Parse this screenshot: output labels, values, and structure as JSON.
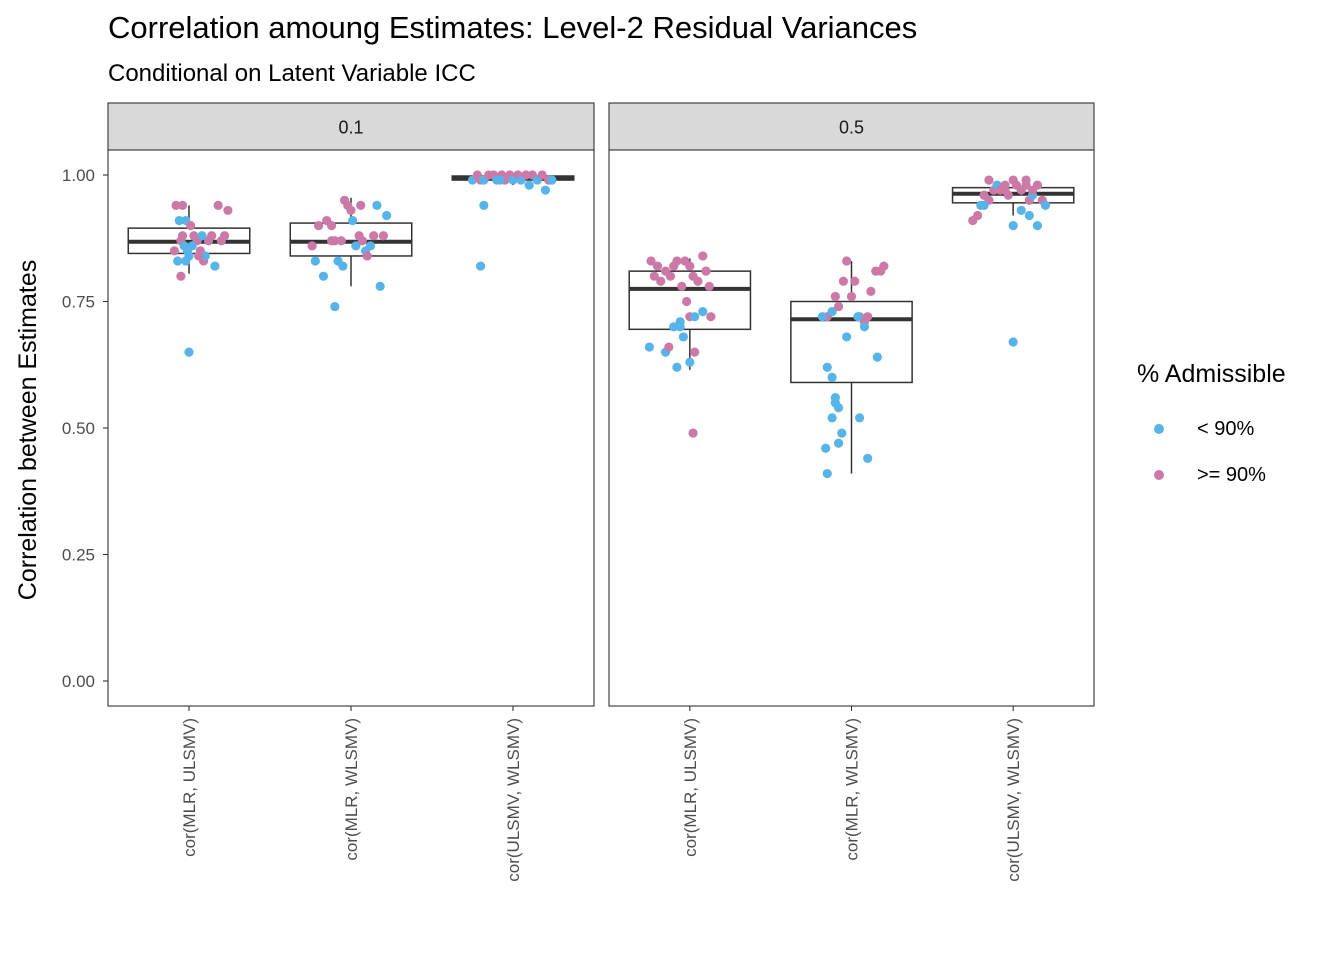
{
  "title": "Correlation amoung Estimates: Level-2 Residual Variances",
  "subtitle": "Conditional on Latent Variable ICC",
  "colors": {
    "lt90": "#56B4E9",
    "ge90": "#CC79A7",
    "strip_bg": "#D9D9D9"
  },
  "legend": {
    "title": "% Admissible",
    "items": [
      {
        "label": "< 90%",
        "color_key": "lt90"
      },
      {
        "label": ">= 90%",
        "color_key": "ge90"
      }
    ]
  },
  "chart_data": {
    "type": "boxplot",
    "ylabel": "Correlation between Estimates",
    "ylim": [
      -0.05,
      1.1
    ],
    "yticks": [
      0.0,
      0.25,
      0.5,
      0.75,
      1.0
    ],
    "ytick_labels": [
      "0.00",
      "0.25",
      "0.50",
      "0.75",
      "1.00"
    ],
    "categories": [
      "cor(MLR, ULSMV)",
      "cor(MLR, WLSMV)",
      "cor(ULSMV, WLSMV)"
    ],
    "facets": [
      {
        "label": "0.1",
        "boxes": [
          {
            "q1": 0.845,
            "median": 0.868,
            "q3": 0.895,
            "whisker_low": 0.805,
            "whisker_high": 0.94
          },
          {
            "q1": 0.84,
            "median": 0.868,
            "q3": 0.905,
            "whisker_low": 0.78,
            "whisker_high": 0.955
          },
          {
            "q1": 0.99,
            "median": 0.995,
            "q3": 0.998,
            "whisker_low": 0.98,
            "whisker_high": 1.0
          }
        ],
        "points": [
          [
            [
              -0.08,
              0.94,
              "ge90"
            ],
            [
              -0.06,
              0.91,
              "lt90"
            ],
            [
              -0.04,
              0.94,
              "ge90"
            ],
            [
              -0.02,
              0.91,
              "lt90"
            ],
            [
              -0.09,
              0.85,
              "ge90"
            ],
            [
              -0.07,
              0.83,
              "lt90"
            ],
            [
              -0.05,
              0.87,
              "ge90"
            ],
            [
              -0.03,
              0.86,
              "lt90"
            ],
            [
              -0.01,
              0.85,
              "lt90"
            ],
            [
              0.0,
              0.84,
              "lt90"
            ],
            [
              0.01,
              0.9,
              "ge90"
            ],
            [
              0.03,
              0.88,
              "ge90"
            ],
            [
              0.05,
              0.87,
              "ge90"
            ],
            [
              0.07,
              0.85,
              "ge90"
            ],
            [
              0.09,
              0.83,
              "ge90"
            ],
            [
              0.1,
              0.84,
              "lt90"
            ],
            [
              0.12,
              0.87,
              "ge90"
            ],
            [
              0.14,
              0.88,
              "ge90"
            ],
            [
              0.16,
              0.82,
              "lt90"
            ],
            [
              0.18,
              0.94,
              "ge90"
            ],
            [
              0.2,
              0.87,
              "ge90"
            ],
            [
              0.22,
              0.88,
              "ge90"
            ],
            [
              0.24,
              0.93,
              "ge90"
            ],
            [
              -0.02,
              0.83,
              "lt90"
            ],
            [
              0.02,
              0.86,
              "lt90"
            ],
            [
              0.06,
              0.84,
              "ge90"
            ],
            [
              -0.05,
              0.8,
              "ge90"
            ],
            [
              0.0,
              0.65,
              "lt90"
            ],
            [
              -0.04,
              0.88,
              "ge90"
            ],
            [
              0.08,
              0.88,
              "lt90"
            ]
          ],
          [
            [
              -0.24,
              0.86,
              "ge90"
            ],
            [
              -0.22,
              0.83,
              "lt90"
            ],
            [
              -0.2,
              0.9,
              "ge90"
            ],
            [
              -0.17,
              0.8,
              "lt90"
            ],
            [
              -0.15,
              0.91,
              "ge90"
            ],
            [
              -0.12,
              0.9,
              "ge90"
            ],
            [
              -0.1,
              0.87,
              "ge90"
            ],
            [
              -0.08,
              0.83,
              "lt90"
            ],
            [
              -0.05,
              0.82,
              "lt90"
            ],
            [
              -0.04,
              0.95,
              "ge90"
            ],
            [
              -0.02,
              0.94,
              "ge90"
            ],
            [
              0.0,
              0.93,
              "ge90"
            ],
            [
              0.01,
              0.91,
              "lt90"
            ],
            [
              0.03,
              0.86,
              "lt90"
            ],
            [
              0.05,
              0.88,
              "ge90"
            ],
            [
              0.07,
              0.87,
              "ge90"
            ],
            [
              0.09,
              0.85,
              "lt90"
            ],
            [
              0.1,
              0.84,
              "ge90"
            ],
            [
              0.12,
              0.86,
              "lt90"
            ],
            [
              0.14,
              0.88,
              "ge90"
            ],
            [
              0.16,
              0.94,
              "lt90"
            ],
            [
              0.18,
              0.78,
              "lt90"
            ],
            [
              0.2,
              0.88,
              "ge90"
            ],
            [
              0.22,
              0.92,
              "lt90"
            ],
            [
              -0.06,
              0.87,
              "ge90"
            ],
            [
              -0.1,
              0.74,
              "lt90"
            ],
            [
              0.06,
              0.94,
              "ge90"
            ],
            [
              -0.12,
              0.87,
              "ge90"
            ]
          ],
          [
            [
              -0.25,
              0.99,
              "lt90"
            ],
            [
              -0.22,
              1.0,
              "ge90"
            ],
            [
              -0.2,
              0.99,
              "ge90"
            ],
            [
              -0.18,
              0.99,
              "lt90"
            ],
            [
              -0.15,
              1.0,
              "ge90"
            ],
            [
              -0.12,
              1.0,
              "ge90"
            ],
            [
              -0.1,
              0.99,
              "lt90"
            ],
            [
              -0.07,
              1.0,
              "ge90"
            ],
            [
              -0.05,
              0.99,
              "ge90"
            ],
            [
              -0.02,
              1.0,
              "ge90"
            ],
            [
              0.0,
              0.99,
              "lt90"
            ],
            [
              0.03,
              1.0,
              "ge90"
            ],
            [
              0.05,
              0.99,
              "lt90"
            ],
            [
              0.08,
              1.0,
              "ge90"
            ],
            [
              0.1,
              0.98,
              "lt90"
            ],
            [
              0.12,
              1.0,
              "ge90"
            ],
            [
              0.15,
              0.99,
              "lt90"
            ],
            [
              0.18,
              1.0,
              "ge90"
            ],
            [
              0.2,
              0.97,
              "lt90"
            ],
            [
              0.22,
              0.99,
              "ge90"
            ],
            [
              -0.18,
              0.94,
              "lt90"
            ],
            [
              -0.2,
              0.82,
              "lt90"
            ],
            [
              0.24,
              0.99,
              "lt90"
            ],
            [
              -0.08,
              0.99,
              "lt90"
            ]
          ]
        ]
      },
      {
        "label": "0.5",
        "boxes": [
          {
            "q1": 0.695,
            "median": 0.775,
            "q3": 0.81,
            "whisker_low": 0.615,
            "whisker_high": 0.835
          },
          {
            "q1": 0.59,
            "median": 0.715,
            "q3": 0.75,
            "whisker_low": 0.41,
            "whisker_high": 0.83
          },
          {
            "q1": 0.945,
            "median": 0.963,
            "q3": 0.975,
            "whisker_low": 0.92,
            "whisker_high": 0.99
          }
        ],
        "points": [
          [
            [
              -0.24,
              0.83,
              "ge90"
            ],
            [
              -0.22,
              0.8,
              "ge90"
            ],
            [
              -0.2,
              0.82,
              "ge90"
            ],
            [
              -0.18,
              0.79,
              "ge90"
            ],
            [
              -0.15,
              0.81,
              "ge90"
            ],
            [
              -0.12,
              0.8,
              "ge90"
            ],
            [
              -0.1,
              0.82,
              "ge90"
            ],
            [
              -0.08,
              0.83,
              "ge90"
            ],
            [
              -0.05,
              0.78,
              "ge90"
            ],
            [
              -0.03,
              0.83,
              "ge90"
            ],
            [
              0.0,
              0.82,
              "ge90"
            ],
            [
              0.02,
              0.8,
              "ge90"
            ],
            [
              0.05,
              0.79,
              "ge90"
            ],
            [
              0.08,
              0.84,
              "ge90"
            ],
            [
              0.1,
              0.81,
              "ge90"
            ],
            [
              0.12,
              0.78,
              "ge90"
            ],
            [
              -0.02,
              0.75,
              "ge90"
            ],
            [
              0.0,
              0.72,
              "ge90"
            ],
            [
              0.03,
              0.72,
              "lt90"
            ],
            [
              0.08,
              0.73,
              "lt90"
            ],
            [
              0.13,
              0.72,
              "ge90"
            ],
            [
              -0.25,
              0.66,
              "lt90"
            ],
            [
              -0.15,
              0.65,
              "lt90"
            ],
            [
              -0.1,
              0.7,
              "lt90"
            ],
            [
              -0.06,
              0.71,
              "lt90"
            ],
            [
              -0.04,
              0.68,
              "lt90"
            ],
            [
              -0.08,
              0.62,
              "lt90"
            ],
            [
              -0.13,
              0.66,
              "ge90"
            ],
            [
              0.0,
              0.63,
              "lt90"
            ],
            [
              0.03,
              0.65,
              "ge90"
            ],
            [
              0.02,
              0.49,
              "ge90"
            ],
            [
              -0.06,
              0.7,
              "lt90"
            ]
          ],
          [
            [
              -0.15,
              0.72,
              "ge90"
            ],
            [
              -0.12,
              0.73,
              "lt90"
            ],
            [
              -0.1,
              0.76,
              "ge90"
            ],
            [
              -0.08,
              0.74,
              "ge90"
            ],
            [
              -0.05,
              0.79,
              "ge90"
            ],
            [
              -0.03,
              0.83,
              "ge90"
            ],
            [
              0.0,
              0.76,
              "ge90"
            ],
            [
              0.02,
              0.79,
              "ge90"
            ],
            [
              0.05,
              0.72,
              "ge90"
            ],
            [
              0.08,
              0.71,
              "ge90"
            ],
            [
              0.1,
              0.72,
              "ge90"
            ],
            [
              0.12,
              0.77,
              "ge90"
            ],
            [
              0.15,
              0.81,
              "ge90"
            ],
            [
              0.18,
              0.81,
              "ge90"
            ],
            [
              0.2,
              0.82,
              "ge90"
            ],
            [
              0.04,
              0.72,
              "lt90"
            ],
            [
              0.08,
              0.7,
              "lt90"
            ],
            [
              0.16,
              0.64,
              "lt90"
            ],
            [
              -0.18,
              0.72,
              "lt90"
            ],
            [
              -0.15,
              0.62,
              "lt90"
            ],
            [
              -0.12,
              0.6,
              "lt90"
            ],
            [
              -0.1,
              0.55,
              "lt90"
            ],
            [
              -0.1,
              0.56,
              "lt90"
            ],
            [
              -0.08,
              0.54,
              "lt90"
            ],
            [
              -0.12,
              0.52,
              "lt90"
            ],
            [
              -0.06,
              0.49,
              "lt90"
            ],
            [
              -0.08,
              0.47,
              "lt90"
            ],
            [
              -0.16,
              0.46,
              "lt90"
            ],
            [
              -0.15,
              0.41,
              "lt90"
            ],
            [
              0.1,
              0.44,
              "lt90"
            ],
            [
              0.05,
              0.52,
              "lt90"
            ],
            [
              -0.03,
              0.68,
              "lt90"
            ]
          ],
          [
            [
              -0.25,
              0.91,
              "ge90"
            ],
            [
              -0.22,
              0.92,
              "ge90"
            ],
            [
              -0.2,
              0.94,
              "lt90"
            ],
            [
              -0.18,
              0.96,
              "ge90"
            ],
            [
              -0.15,
              0.95,
              "ge90"
            ],
            [
              -0.12,
              0.97,
              "ge90"
            ],
            [
              -0.1,
              0.98,
              "lt90"
            ],
            [
              -0.08,
              0.97,
              "ge90"
            ],
            [
              -0.05,
              0.98,
              "ge90"
            ],
            [
              -0.03,
              0.96,
              "ge90"
            ],
            [
              0.0,
              0.99,
              "ge90"
            ],
            [
              0.02,
              0.98,
              "ge90"
            ],
            [
              0.05,
              0.97,
              "ge90"
            ],
            [
              0.08,
              0.98,
              "ge90"
            ],
            [
              0.1,
              0.95,
              "ge90"
            ],
            [
              0.12,
              0.96,
              "lt90"
            ],
            [
              0.15,
              0.98,
              "ge90"
            ],
            [
              0.18,
              0.95,
              "ge90"
            ],
            [
              0.2,
              0.94,
              "lt90"
            ],
            [
              -0.15,
              0.99,
              "ge90"
            ],
            [
              -0.18,
              0.94,
              "lt90"
            ],
            [
              0.0,
              0.9,
              "lt90"
            ],
            [
              0.05,
              0.93,
              "lt90"
            ],
            [
              0.1,
              0.92,
              "lt90"
            ],
            [
              0.15,
              0.9,
              "lt90"
            ],
            [
              0.08,
              0.99,
              "ge90"
            ],
            [
              -0.05,
              0.97,
              "ge90"
            ],
            [
              0.12,
              0.97,
              "ge90"
            ],
            [
              0.0,
              0.67,
              "lt90"
            ]
          ]
        ]
      }
    ]
  }
}
